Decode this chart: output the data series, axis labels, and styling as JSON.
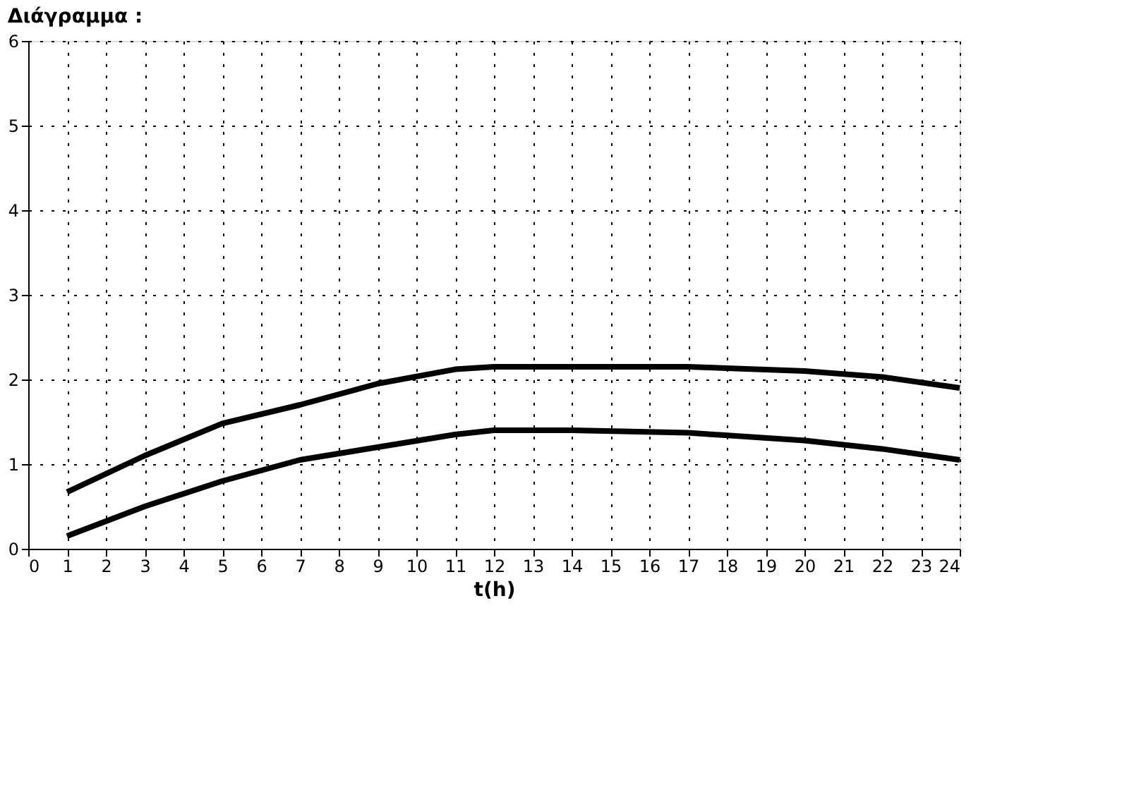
{
  "chart_data": {
    "type": "line",
    "title": "Διάγραμμα :",
    "xlabel": "t(h)",
    "x": [
      1,
      3,
      5,
      7,
      9,
      11,
      12,
      14,
      17,
      20,
      22,
      24
    ],
    "series": [
      {
        "color": "#000000",
        "values": [
          0.67,
          1.1,
          1.48,
          1.7,
          1.95,
          2.12,
          2.15,
          2.15,
          2.15,
          2.1,
          2.03,
          1.9
        ]
      },
      {
        "color": "#000000",
        "values": [
          0.15,
          0.5,
          0.8,
          1.05,
          1.2,
          1.35,
          1.4,
          1.4,
          1.37,
          1.28,
          1.18,
          1.05
        ]
      }
    ],
    "xlim": [
      0,
      24
    ],
    "xticks": [
      0,
      1,
      2,
      3,
      4,
      5,
      6,
      7,
      8,
      9,
      10,
      11,
      12,
      13,
      14,
      15,
      16,
      17,
      18,
      19,
      20,
      21,
      22,
      23,
      24
    ],
    "ylim": [
      0,
      6
    ],
    "yticks": [
      0,
      1,
      2,
      3,
      4,
      5,
      6
    ],
    "grid": true,
    "line_style": "solid",
    "marker": "none"
  }
}
